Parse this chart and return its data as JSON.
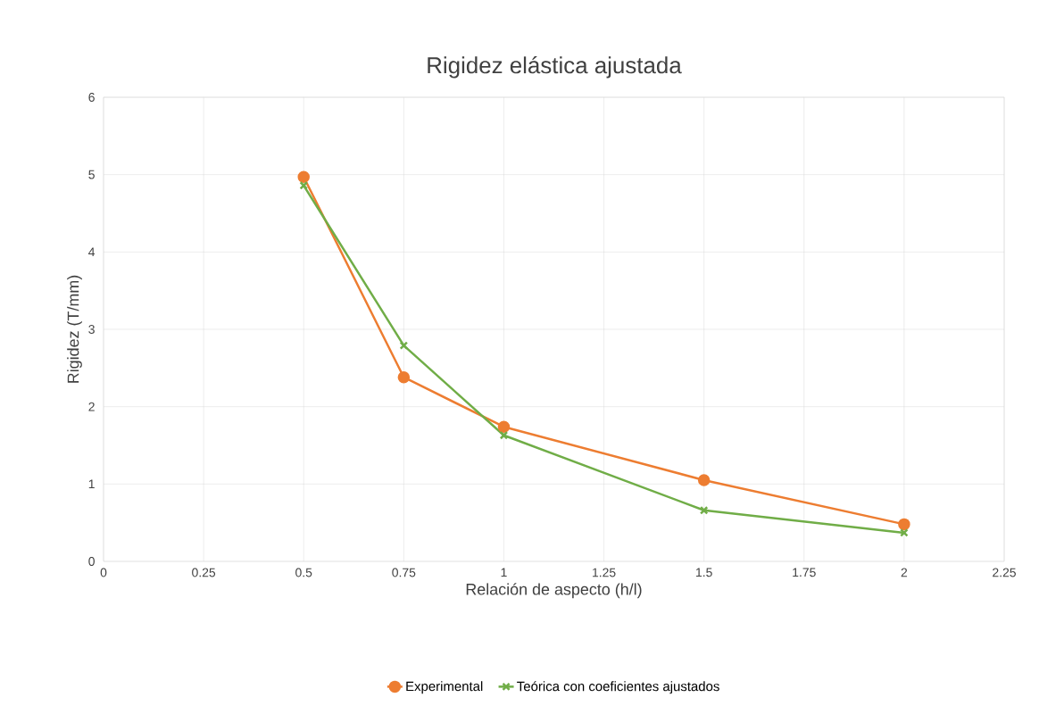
{
  "chart_data": {
    "type": "line",
    "title": "Rigidez elástica ajustada",
    "xlabel": "Relación de aspecto (h/l)",
    "ylabel": "Rigidez (T/mm)",
    "x": [
      0.5,
      0.75,
      1,
      1.5,
      2
    ],
    "series": [
      {
        "name": "Experimental",
        "color": "#ed7d31",
        "marker": "circle",
        "values": [
          4.97,
          2.38,
          1.74,
          1.05,
          0.48
        ]
      },
      {
        "name": "Teórica con coeficientes ajustados",
        "color": "#70ad47",
        "marker": "cross",
        "values": [
          4.86,
          2.79,
          1.63,
          0.66,
          0.37
        ]
      }
    ],
    "xlim": [
      0,
      2.25
    ],
    "xticks": [
      0,
      0.25,
      0.5,
      0.75,
      1,
      1.25,
      1.5,
      1.75,
      2,
      2.25
    ],
    "ylim": [
      0,
      6
    ],
    "yticks": [
      0,
      1,
      2,
      3,
      4,
      5,
      6
    ],
    "grid": true,
    "legend": "bottom"
  }
}
